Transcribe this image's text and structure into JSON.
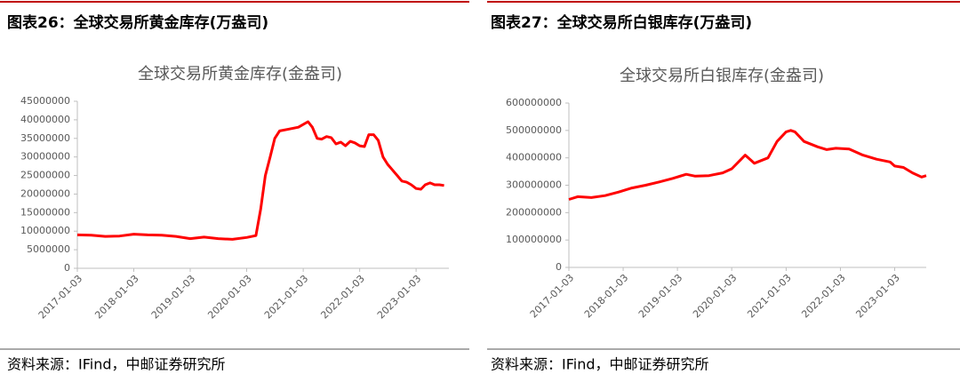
{
  "figures": [
    {
      "header": "图表26：全球交易所黄金库存(万盎司)",
      "source": "资料来源：IFind，中邮证券研究所"
    },
    {
      "header": "图表27：全球交易所白银库存(万盎司)",
      "source": "资料来源：IFind，中邮证券研究所"
    }
  ],
  "chart_data": [
    {
      "type": "line",
      "title": "全球交易所黄金库存(金盎司)",
      "color": "#ff0000",
      "x": [
        "2017-01-03",
        "2017-04-03",
        "2017-07-03",
        "2017-10-03",
        "2018-01-03",
        "2018-04-03",
        "2018-07-03",
        "2018-10-03",
        "2019-01-03",
        "2019-04-03",
        "2019-07-03",
        "2019-10-03",
        "2020-01-03",
        "2020-03-03",
        "2020-04-03",
        "2020-05-03",
        "2020-06-03",
        "2020-07-03",
        "2020-08-03",
        "2020-10-03",
        "2020-12-03",
        "2021-02-03",
        "2021-03-03",
        "2021-04-03",
        "2021-05-03",
        "2021-06-03",
        "2021-07-03",
        "2021-08-03",
        "2021-09-03",
        "2021-10-03",
        "2021-11-03",
        "2021-12-03",
        "2022-01-03",
        "2022-02-03",
        "2022-03-03",
        "2022-04-03",
        "2022-05-03",
        "2022-06-03",
        "2022-07-03",
        "2022-08-03",
        "2022-09-03",
        "2022-10-03",
        "2022-11-03",
        "2022-12-03",
        "2023-01-03",
        "2023-02-03",
        "2023-03-03",
        "2023-04-03",
        "2023-05-03",
        "2023-06-03",
        "2023-07-03"
      ],
      "values": [
        9000000,
        8900000,
        8600000,
        8700000,
        9200000,
        9000000,
        8900000,
        8600000,
        8000000,
        8400000,
        8000000,
        7800000,
        8300000,
        8800000,
        16000000,
        25000000,
        30000000,
        35000000,
        37000000,
        37500000,
        38000000,
        39500000,
        38000000,
        35000000,
        34800000,
        35500000,
        35200000,
        33500000,
        34000000,
        33000000,
        34200000,
        33800000,
        33000000,
        32800000,
        36000000,
        36000000,
        34500000,
        30000000,
        28000000,
        26500000,
        25000000,
        23500000,
        23200000,
        22500000,
        21500000,
        21300000,
        22500000,
        23000000,
        22500000,
        22500000,
        22300000
      ],
      "xlim": [
        "2017-01-03",
        "2023-08-03"
      ],
      "xticks": [
        "2017-01-03",
        "2018-01-03",
        "2019-01-03",
        "2020-01-03",
        "2021-01-03",
        "2022-01-03",
        "2023-01-03"
      ],
      "ylim": [
        0,
        45000000
      ],
      "yticks": [
        0,
        5000000,
        10000000,
        15000000,
        20000000,
        25000000,
        30000000,
        35000000,
        40000000,
        45000000
      ]
    },
    {
      "type": "line",
      "title": "全球交易所白银库存(金盎司)",
      "color": "#ff0000",
      "x": [
        "2017-01-03",
        "2017-03-03",
        "2017-06-03",
        "2017-09-03",
        "2017-12-03",
        "2018-03-03",
        "2018-06-03",
        "2018-09-03",
        "2018-12-03",
        "2019-03-03",
        "2019-05-03",
        "2019-08-03",
        "2019-11-03",
        "2020-01-03",
        "2020-04-03",
        "2020-06-03",
        "2020-09-03",
        "2020-11-03",
        "2021-01-03",
        "2021-02-03",
        "2021-03-03",
        "2021-05-03",
        "2021-08-03",
        "2021-10-03",
        "2021-12-03",
        "2022-03-03",
        "2022-06-03",
        "2022-09-03",
        "2022-12-03",
        "2023-01-03",
        "2023-03-03",
        "2023-05-03",
        "2023-07-03",
        "2023-08-03"
      ],
      "values": [
        248000000,
        258000000,
        255000000,
        262000000,
        275000000,
        290000000,
        300000000,
        312000000,
        325000000,
        340000000,
        333000000,
        335000000,
        345000000,
        360000000,
        410000000,
        380000000,
        400000000,
        460000000,
        495000000,
        500000000,
        495000000,
        460000000,
        440000000,
        430000000,
        435000000,
        432000000,
        410000000,
        395000000,
        385000000,
        370000000,
        365000000,
        345000000,
        330000000,
        335000000
      ],
      "xlim": [
        "2017-01-03",
        "2023-08-03"
      ],
      "xticks": [
        "2017-01-03",
        "2018-01-03",
        "2019-01-03",
        "2020-01-03",
        "2021-01-03",
        "2022-01-03",
        "2023-01-03"
      ],
      "ylim": [
        0,
        600000000
      ],
      "yticks": [
        0,
        100000000,
        200000000,
        300000000,
        400000000,
        500000000,
        600000000
      ]
    }
  ]
}
